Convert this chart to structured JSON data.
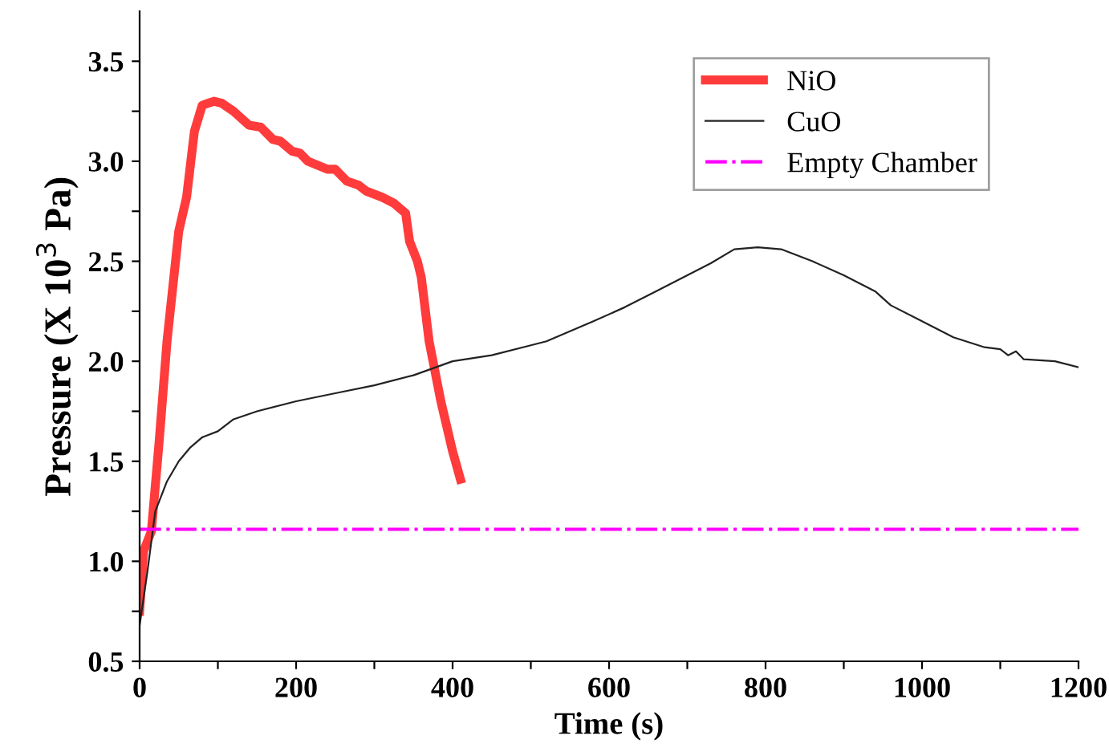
{
  "chart_data": {
    "type": "line",
    "xlabel": "Time (s)",
    "ylabel": "Pressure (X 10$^{3}$ Pa)",
    "xlim": [
      0,
      1200
    ],
    "ylim": [
      0.5,
      3.75
    ],
    "xticks": [
      0,
      {
        "value": 100,
        "label": null
      },
      200,
      {
        "value": 300,
        "label": null
      },
      400,
      {
        "value": 500,
        "label": null
      },
      600,
      {
        "value": 700,
        "label": null
      },
      800,
      {
        "value": 900,
        "label": null
      },
      1000,
      {
        "value": 1100,
        "label": null
      },
      1200
    ],
    "yticks": [
      0.5,
      {
        "value": 0.75,
        "label": null
      },
      {
        "value": 1.0,
        "label": "1.0"
      },
      {
        "value": 1.25,
        "label": null
      },
      1.5,
      {
        "value": 1.75,
        "label": null
      },
      {
        "value": 2.0,
        "label": "2.0"
      },
      {
        "value": 2.25,
        "label": null
      },
      2.5,
      {
        "value": 2.75,
        "label": null
      },
      {
        "value": 3.0,
        "label": "3.0"
      },
      {
        "value": 3.25,
        "label": null
      },
      3.5
    ],
    "grid": false,
    "legend": "top right",
    "marker": "none",
    "series": [
      {
        "name": "NiO",
        "color": "#ff3b3b",
        "line_style": "solid",
        "x": [
          0,
          5,
          15,
          25,
          35,
          50,
          60,
          70,
          80,
          95,
          105,
          120,
          140,
          155,
          170,
          180,
          195,
          205,
          215,
          240,
          250,
          265,
          280,
          290,
          310,
          325,
          340,
          345,
          355,
          360,
          370,
          385,
          400,
          410
        ],
        "values": [
          0.75,
          1.05,
          1.15,
          1.6,
          2.1,
          2.65,
          2.82,
          3.15,
          3.28,
          3.3,
          3.29,
          3.25,
          3.18,
          3.17,
          3.11,
          3.1,
          3.05,
          3.04,
          3.0,
          2.96,
          2.96,
          2.9,
          2.88,
          2.85,
          2.82,
          2.79,
          2.74,
          2.6,
          2.5,
          2.42,
          2.1,
          1.8,
          1.55,
          1.41
        ]
      },
      {
        "name": "CuO",
        "color": "#222222",
        "line_style": "solid",
        "x": [
          0,
          10,
          20,
          35,
          50,
          65,
          80,
          100,
          120,
          150,
          200,
          250,
          300,
          350,
          400,
          450,
          500,
          520,
          550,
          580,
          620,
          660,
          700,
          730,
          760,
          790,
          820,
          860,
          900,
          940,
          960,
          1000,
          1040,
          1080,
          1100,
          1110,
          1120,
          1130,
          1170,
          1200
        ],
        "values": [
          0.68,
          0.95,
          1.25,
          1.4,
          1.5,
          1.57,
          1.62,
          1.65,
          1.71,
          1.75,
          1.8,
          1.84,
          1.88,
          1.93,
          2.0,
          2.03,
          2.08,
          2.1,
          2.15,
          2.2,
          2.27,
          2.35,
          2.43,
          2.49,
          2.56,
          2.57,
          2.56,
          2.5,
          2.43,
          2.35,
          2.28,
          2.2,
          2.12,
          2.07,
          2.06,
          2.03,
          2.05,
          2.01,
          2.0,
          1.97
        ]
      }
    ],
    "ref_lines": [
      {
        "axis": "y",
        "value": 1.16,
        "label": "Empty Chamber",
        "color": "#ff00ff",
        "line_style": "dashdot"
      }
    ]
  }
}
